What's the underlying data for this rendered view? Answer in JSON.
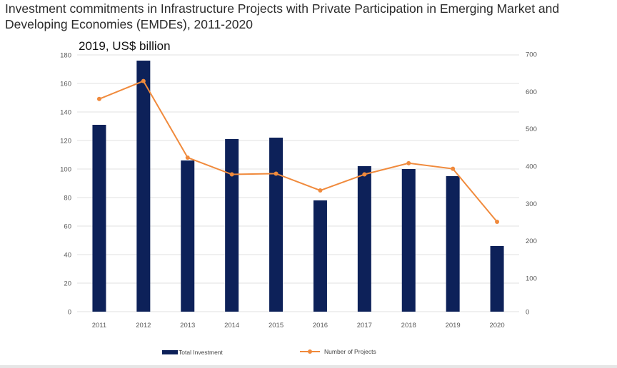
{
  "title": "Investment commitments in Infrastructure Projects with Private Participation in Emerging Market and Developing Economies (EMDEs), 2011-2020",
  "subtitle": "2019, US$ billion",
  "colors": {
    "bar": "#0d2159",
    "line": "#f08a3c",
    "grid": "#e2e2e2"
  },
  "chart_data": {
    "type": "bar",
    "categories": [
      "2011",
      "2012",
      "2013",
      "2014",
      "2015",
      "2016",
      "2017",
      "2018",
      "2019",
      "2020"
    ],
    "series": [
      {
        "name": "Total Investment",
        "type": "bar",
        "axis": "left",
        "values": [
          131,
          176,
          106,
          121,
          122,
          78,
          102,
          100,
          95,
          46
        ]
      },
      {
        "name": "Number of Projects",
        "type": "line",
        "axis": "right",
        "values": [
          580,
          628,
          423,
          378,
          380,
          335,
          378,
          408,
          393,
          251
        ]
      }
    ],
    "y_left": {
      "min": 0,
      "max": 180,
      "ticks": [
        "0",
        "20",
        "40",
        "60",
        "80",
        "100",
        "120",
        "140",
        "160",
        "180"
      ]
    },
    "y_right": {
      "ticks": [
        {
          "label": "0",
          "value": 0
        },
        {
          "label": "100",
          "value": 100
        },
        {
          "label": "200",
          "value": 200
        },
        {
          "label": "300",
          "value": 300
        },
        {
          "label": "400",
          "value": 400
        },
        {
          "label": "500",
          "value": 500
        },
        {
          "label": "600",
          "value": 600
        },
        {
          "label": "700",
          "value": 700
        }
      ]
    },
    "legend": [
      "Total Investment",
      "Number of Projects"
    ],
    "legend_position": "bottom"
  }
}
